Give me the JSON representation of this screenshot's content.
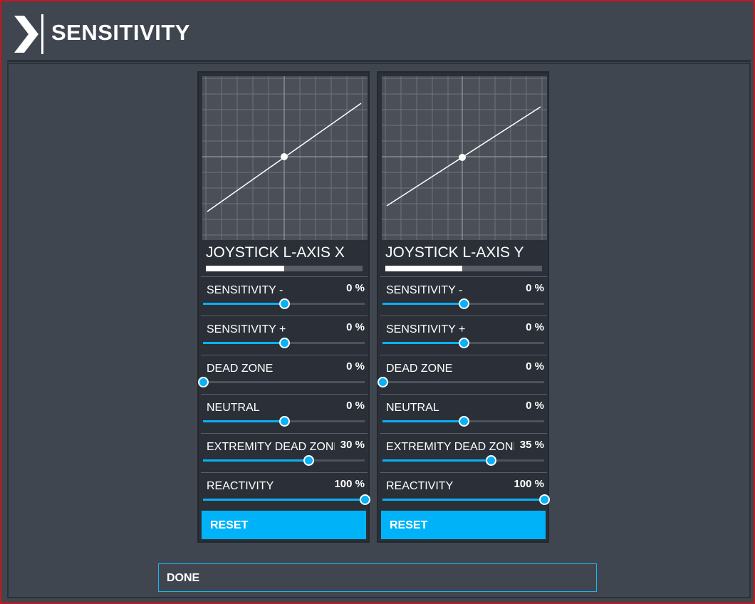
{
  "header": {
    "title": "SENSITIVITY",
    "logo_icon": "chevron-right-logo"
  },
  "colors": {
    "accent": "#00b3f9",
    "frame_border": "#c8171e",
    "background": "#3f4650",
    "panel": "#2b3038"
  },
  "panels": [
    {
      "axis_name": "JOYSTICK L-AXIS X",
      "range_fraction": 0.5,
      "settings": [
        {
          "label": "SENSITIVITY -",
          "value": "0 %",
          "slider_fraction": 0.5
        },
        {
          "label": "SENSITIVITY +",
          "value": "0 %",
          "slider_fraction": 0.5
        },
        {
          "label": "DEAD ZONE",
          "value": "0 %",
          "slider_fraction": 0.0
        },
        {
          "label": "NEUTRAL",
          "value": "0 %",
          "slider_fraction": 0.5
        },
        {
          "label": "EXTREMITY DEAD ZONE",
          "value": "30 %",
          "slider_fraction": 0.65
        },
        {
          "label": "REACTIVITY",
          "value": "100 %",
          "slider_fraction": 1.0
        }
      ],
      "reset_label": "RESET"
    },
    {
      "axis_name": "JOYSTICK L-AXIS Y",
      "range_fraction": 0.49,
      "settings": [
        {
          "label": "SENSITIVITY -",
          "value": "0 %",
          "slider_fraction": 0.5
        },
        {
          "label": "SENSITIVITY +",
          "value": "0 %",
          "slider_fraction": 0.5
        },
        {
          "label": "DEAD ZONE",
          "value": "0 %",
          "slider_fraction": 0.0
        },
        {
          "label": "NEUTRAL",
          "value": "0 %",
          "slider_fraction": 0.5
        },
        {
          "label": "EXTREMITY DEAD ZONE",
          "value": "35 %",
          "slider_fraction": 0.67
        },
        {
          "label": "REACTIVITY",
          "value": "100 %",
          "slider_fraction": 1.0
        }
      ],
      "reset_label": "RESET"
    }
  ],
  "footer": {
    "done_label": "DONE"
  }
}
